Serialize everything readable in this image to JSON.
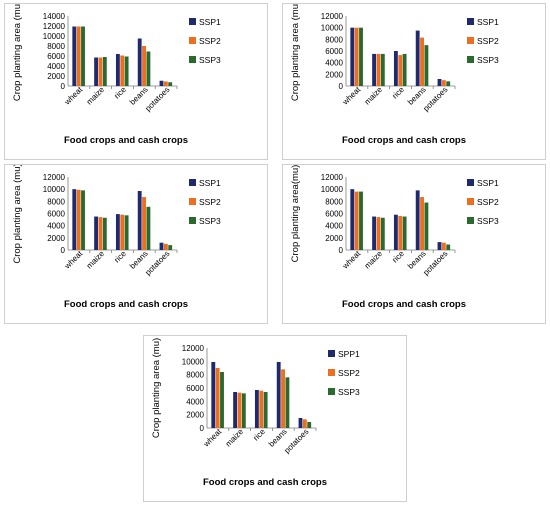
{
  "colors": {
    "SSP1": "#1f2a6e",
    "SSP2": "#ec6e1e",
    "SSP3": "#2b6a2f"
  },
  "chart_data": [
    {
      "type": "bar",
      "categories": [
        "wheat",
        "maize",
        "rice",
        "beans",
        "potatoes"
      ],
      "series": [
        {
          "name": "SSP1",
          "values": [
            11900,
            5700,
            6400,
            9500,
            1050
          ]
        },
        {
          "name": "SSP2",
          "values": [
            11900,
            5700,
            6100,
            8000,
            900
          ]
        },
        {
          "name": "SSP3",
          "values": [
            11900,
            5800,
            5900,
            6900,
            750
          ]
        }
      ],
      "ylim": [
        0,
        14000
      ],
      "yticks": [
        "0",
        "2000",
        "4000",
        "6000",
        "8000",
        "10000",
        "12000",
        "14000"
      ],
      "ylabel": "Crop planting area (mu)",
      "xlabel": "Food crops and cash crops",
      "legend": "right",
      "grid": false
    },
    {
      "type": "bar",
      "categories": [
        "wheat",
        "maize",
        "rice",
        "beans",
        "potatoes"
      ],
      "series": [
        {
          "name": "SSP1",
          "values": [
            10000,
            5500,
            6000,
            9500,
            1200
          ]
        },
        {
          "name": "SSP2",
          "values": [
            10000,
            5500,
            5300,
            8300,
            1000
          ]
        },
        {
          "name": "SSP3",
          "values": [
            10000,
            5500,
            5500,
            7000,
            800
          ]
        }
      ],
      "ylim": [
        0,
        12000
      ],
      "yticks": [
        "0",
        "2000",
        "4000",
        "6000",
        "8000",
        "10000",
        "12000"
      ],
      "ylabel": "Crop planting area (mu)",
      "xlabel": "Food crops and cash crops",
      "legend": "right",
      "grid": false
    },
    {
      "type": "bar",
      "categories": [
        "wheat",
        "maize",
        "rice",
        "beans",
        "potatoes"
      ],
      "series": [
        {
          "name": "SSP1",
          "values": [
            10000,
            5500,
            5900,
            9700,
            1200
          ]
        },
        {
          "name": "SSP2",
          "values": [
            9900,
            5400,
            5800,
            8700,
            1000
          ]
        },
        {
          "name": "SSP3",
          "values": [
            9800,
            5300,
            5700,
            7100,
            800
          ]
        }
      ],
      "ylim": [
        0,
        12000
      ],
      "yticks": [
        "0",
        "2000",
        "4000",
        "6000",
        "8000",
        "10000",
        "12000"
      ],
      "ylabel": "Crop planting area (mu)",
      "xlabel": "Food crops and cash crops",
      "legend": "right",
      "grid": false
    },
    {
      "type": "bar",
      "categories": [
        "wheat",
        "maize",
        "rice",
        "beans",
        "potatoes"
      ],
      "series": [
        {
          "name": "SSP1",
          "values": [
            10000,
            5500,
            5800,
            9800,
            1300
          ]
        },
        {
          "name": "SSP2",
          "values": [
            9600,
            5400,
            5600,
            8700,
            1200
          ]
        },
        {
          "name": "SSP3",
          "values": [
            9600,
            5300,
            5500,
            7800,
            900
          ]
        }
      ],
      "ylim": [
        0,
        12000
      ],
      "yticks": [
        "0",
        "2000",
        "4000",
        "6000",
        "8000",
        "10000",
        "12000"
      ],
      "ylabel": "Crop planting area(mu)",
      "xlabel": "Food crops and cash crops",
      "legend": "right",
      "grid": false
    },
    {
      "type": "bar",
      "categories": [
        "wheat",
        "maize",
        "rice",
        "beans",
        "potatoes"
      ],
      "series": [
        {
          "name": "SPP1",
          "values": [
            9900,
            5400,
            5700,
            9900,
            1500
          ]
        },
        {
          "name": "SSP2",
          "values": [
            9000,
            5300,
            5600,
            8800,
            1300
          ]
        },
        {
          "name": "SSP3",
          "values": [
            8400,
            5200,
            5400,
            7600,
            900
          ]
        }
      ],
      "ylim": [
        0,
        12000
      ],
      "yticks": [
        "0",
        "2000",
        "4000",
        "6000",
        "8000",
        "10000",
        "12000"
      ],
      "ylabel": "Crop planting area (mu)",
      "xlabel": "Food crops and cash crops",
      "legend": "right",
      "grid": false
    }
  ]
}
